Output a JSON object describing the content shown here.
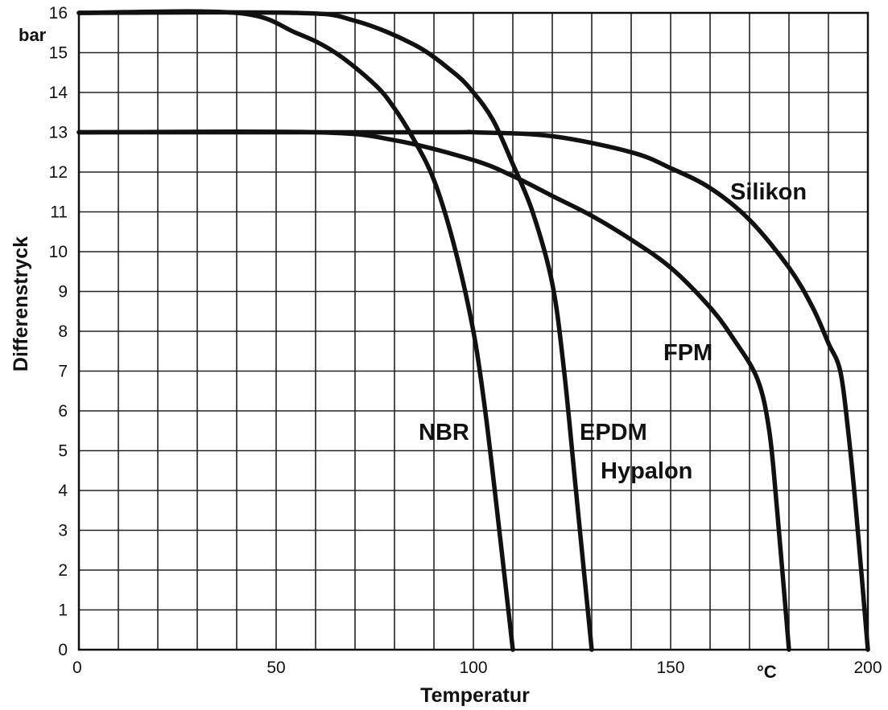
{
  "chart_data": {
    "type": "line",
    "title": "",
    "xlabel": "Temperatur",
    "ylabel": "Differenstryck",
    "x_unit": "°C",
    "y_unit": "bar",
    "xlim": [
      0,
      200
    ],
    "ylim": [
      0,
      16
    ],
    "x_ticks": [
      0,
      50,
      100,
      150,
      200
    ],
    "y_ticks": [
      0,
      1,
      2,
      3,
      4,
      5,
      6,
      7,
      8,
      9,
      10,
      11,
      12,
      13,
      14,
      15,
      16
    ],
    "grid": true,
    "series": [
      {
        "name": "NBR",
        "x": [
          0,
          40,
          55,
          65,
          75,
          80,
          85,
          90,
          95,
          100,
          103,
          106,
          110
        ],
        "y": [
          16,
          16,
          15.5,
          15,
          14.2,
          13.6,
          12.8,
          11.8,
          10.2,
          8.0,
          6.0,
          3.5,
          0
        ]
      },
      {
        "name": "EPDM Hypalon",
        "x": [
          0,
          55,
          70,
          85,
          95,
          100,
          105,
          110,
          115,
          120,
          123,
          126,
          130
        ],
        "y": [
          16,
          16,
          15.8,
          15.2,
          14.5,
          14.0,
          13.3,
          12.2,
          11.0,
          9.2,
          7.0,
          4.0,
          0
        ]
      },
      {
        "name": "FPM",
        "x": [
          0,
          60,
          80,
          100,
          110,
          120,
          130,
          140,
          150,
          160,
          166,
          172,
          175,
          177,
          180
        ],
        "y": [
          13,
          13,
          12.8,
          12.3,
          11.9,
          11.4,
          10.9,
          10.3,
          9.6,
          8.6,
          7.8,
          6.8,
          5.5,
          3.5,
          0
        ]
      },
      {
        "name": "Silikon",
        "x": [
          0,
          90,
          100,
          120,
          140,
          150,
          160,
          170,
          180,
          186,
          190,
          193,
          195,
          197,
          200
        ],
        "y": [
          13,
          13,
          13,
          12.9,
          12.5,
          12.1,
          11.6,
          10.8,
          9.6,
          8.6,
          7.7,
          7.0,
          5.5,
          3.5,
          0
        ]
      }
    ]
  }
}
